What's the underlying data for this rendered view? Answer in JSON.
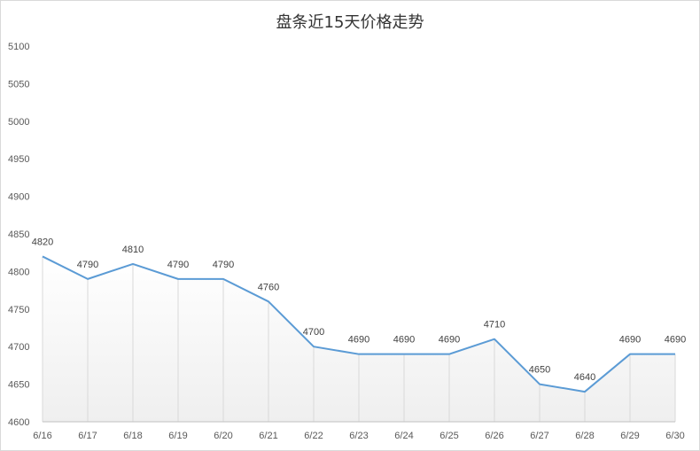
{
  "chart_data": {
    "type": "area",
    "title": "盘条近15天价格走势",
    "categories": [
      "6/16",
      "6/17",
      "6/18",
      "6/19",
      "6/20",
      "6/21",
      "6/22",
      "6/23",
      "6/24",
      "6/25",
      "6/26",
      "6/27",
      "6/28",
      "6/29",
      "6/30"
    ],
    "series": [
      {
        "values": [
          4820,
          4790,
          4810,
          4790,
          4790,
          4760,
          4700,
          4690,
          4690,
          4690,
          4710,
          4650,
          4640,
          4690,
          4690
        ]
      }
    ],
    "ylim": [
      4600,
      5100
    ],
    "yticks": [
      "5100",
      "5050",
      "5000",
      "4950",
      "4900",
      "4850",
      "4800",
      "4750",
      "4700",
      "4650",
      "4600"
    ],
    "line_color": "#5b9bd5",
    "fill_gradient": [
      "#ffffff",
      "#efefef"
    ],
    "grid": "vertical drop lines",
    "legend": "none"
  }
}
